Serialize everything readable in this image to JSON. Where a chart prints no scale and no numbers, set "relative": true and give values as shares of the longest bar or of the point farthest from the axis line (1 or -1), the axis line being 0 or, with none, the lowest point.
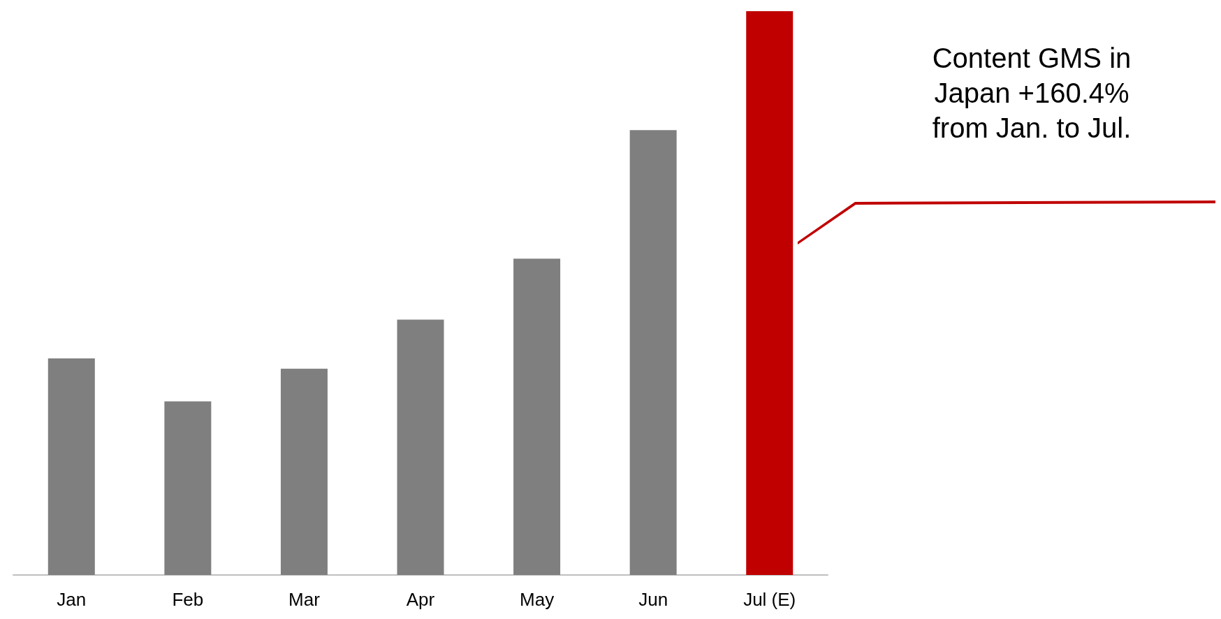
{
  "chart_data": {
    "type": "bar",
    "categories": [
      "Jan",
      "Feb",
      "Mar",
      "Apr",
      "May",
      "Jun",
      "Jul (E)"
    ],
    "values": [
      0.384,
      0.308,
      0.366,
      0.453,
      0.561,
      0.789,
      1
    ],
    "colors": [
      "#7f7f7f",
      "#7f7f7f",
      "#7f7f7f",
      "#7f7f7f",
      "#7f7f7f",
      "#7f7f7f",
      "#c00000"
    ],
    "relative": true,
    "annotations": [
      "Content GMS in Japan +160.4% from Jan. to Jul."
    ]
  }
}
